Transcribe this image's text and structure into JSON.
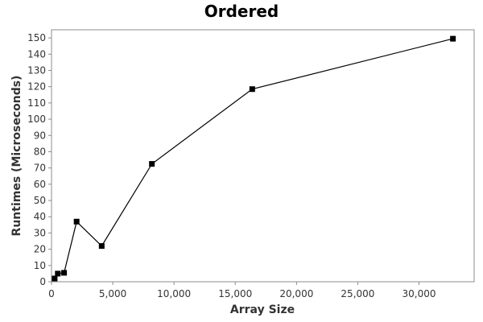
{
  "chart_data": {
    "type": "line",
    "title": "Ordered",
    "xlabel": "Array Size",
    "ylabel": "Runtimes (Microseconds)",
    "xlim": [
      0,
      34500
    ],
    "ylim": [
      0,
      155
    ],
    "x_ticks": [
      0,
      5000,
      10000,
      15000,
      20000,
      25000,
      30000
    ],
    "x_tick_labels": [
      "0",
      "5,000",
      "10,000",
      "15,000",
      "20,000",
      "25,000",
      "30,000"
    ],
    "y_ticks": [
      0,
      10,
      20,
      30,
      40,
      50,
      60,
      70,
      80,
      90,
      100,
      110,
      120,
      130,
      140,
      150
    ],
    "y_tick_labels": [
      "0",
      "10",
      "20",
      "30",
      "40",
      "50",
      "60",
      "70",
      "80",
      "90",
      "100",
      "110",
      "120",
      "130",
      "140",
      "150"
    ],
    "grid": false,
    "legend": "none",
    "series": [
      {
        "color": "#000000",
        "marker": "square",
        "x": [
          256,
          512,
          1024,
          2048,
          4096,
          8192,
          16384,
          32768
        ],
        "y": [
          2,
          5,
          5.5,
          37,
          22,
          72.5,
          118.5,
          149.5
        ]
      }
    ]
  }
}
